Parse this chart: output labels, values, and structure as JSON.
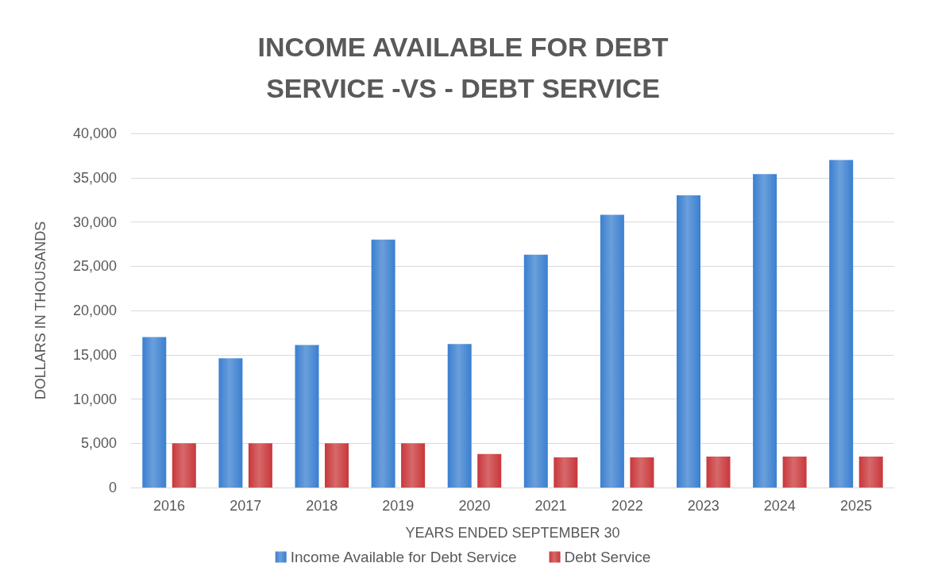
{
  "chart_data": {
    "type": "bar",
    "title": "INCOME AVAILABLE FOR DEBT\nSERVICE -VS - DEBT SERVICE",
    "xlabel": "YEARS ENDED SEPTEMBER 30",
    "ylabel": "DOLLARS IN THOUSANDS",
    "categories": [
      "2016",
      "2017",
      "2018",
      "2019",
      "2020",
      "2021",
      "2022",
      "2023",
      "2024",
      "2025"
    ],
    "series": [
      {
        "name": "Income Available for Debt Service",
        "color": "#3a7fd0",
        "values": [
          17000,
          14600,
          16100,
          28000,
          16200,
          26300,
          30800,
          33000,
          35400,
          37000
        ]
      },
      {
        "name": "Debt Service",
        "color": "#c9373a",
        "values": [
          5000,
          5000,
          5000,
          5000,
          3800,
          3400,
          3400,
          3500,
          3500,
          3500
        ]
      }
    ],
    "ylim": [
      0,
      40000
    ],
    "yticks": [
      0,
      {
        "value": 5000,
        "label": "5,000"
      },
      {
        "value": 10000,
        "label": "10,000"
      },
      {
        "value": 15000,
        "label": "15,000"
      },
      {
        "value": 20000,
        "label": "20,000"
      },
      {
        "value": 25000,
        "label": "25,000"
      },
      {
        "value": 30000,
        "label": "30,000"
      },
      {
        "value": 35000,
        "label": "35,000"
      },
      {
        "value": 40000,
        "label": "40,000"
      }
    ],
    "grid": "y",
    "legend": "bottom"
  }
}
